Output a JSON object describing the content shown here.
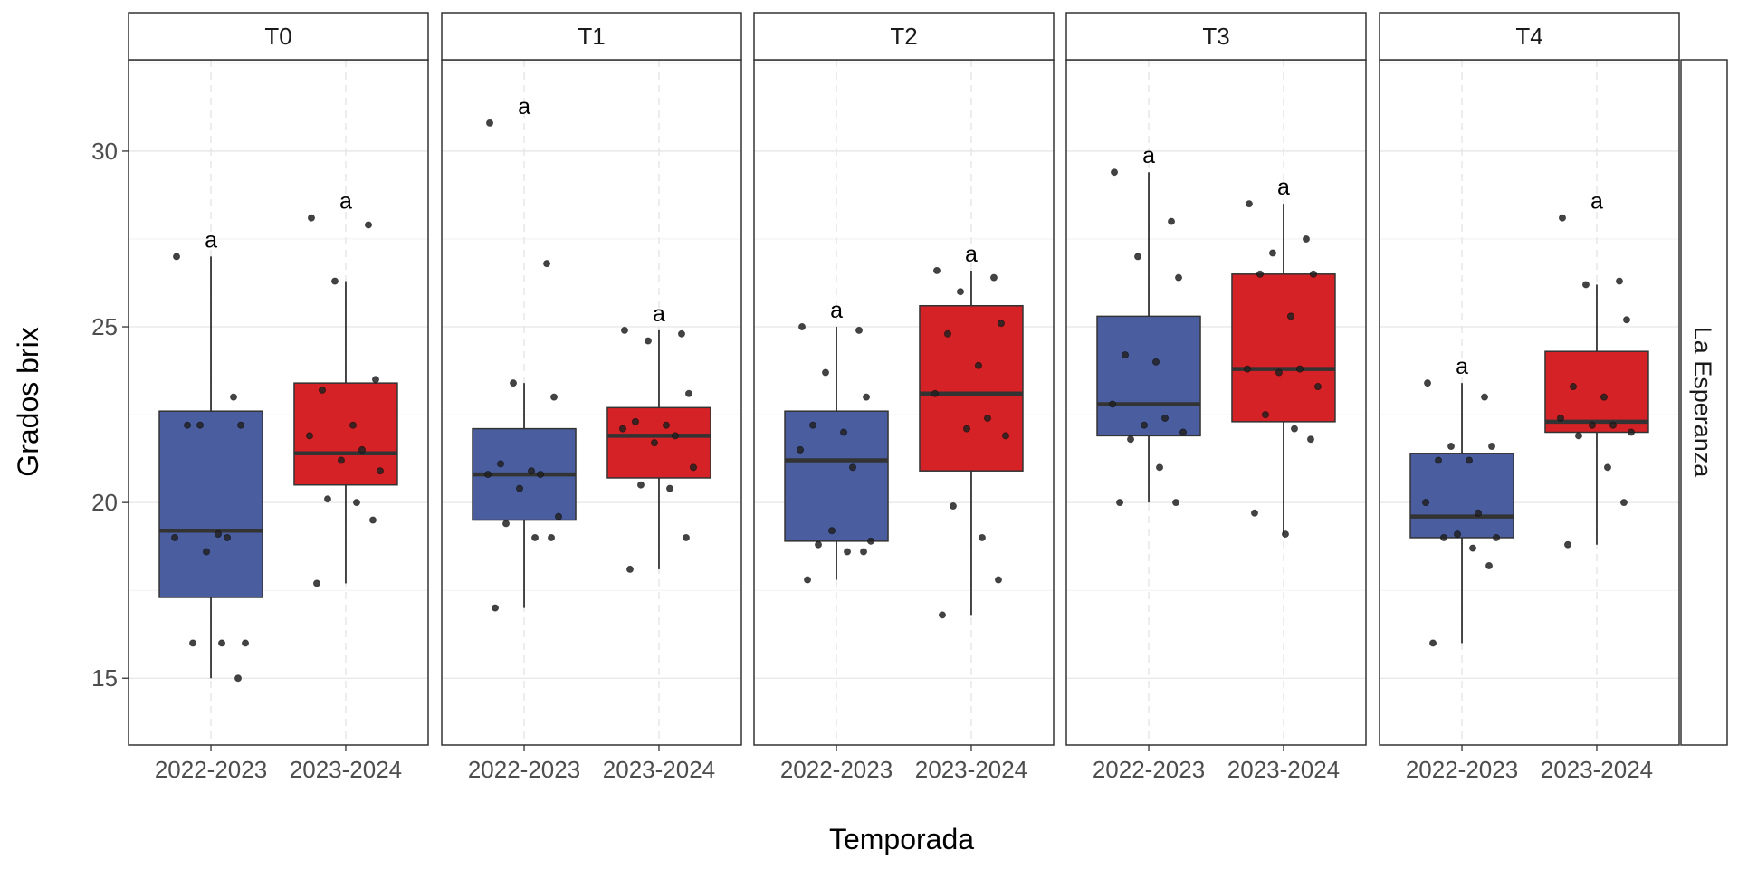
{
  "chart_data": {
    "type": "boxplot",
    "xlabel": "Temporada",
    "ylabel": "Grados brix",
    "ylim": [
      13.1,
      32.6
    ],
    "yticks": [
      15,
      20,
      25,
      30
    ],
    "grid": true,
    "row_strip": "La Esperanza",
    "categories": [
      "2022-2023",
      "2023-2024"
    ],
    "colors": {
      "2022-2023": "#4a5e9f",
      "2023-2024": "#d52226",
      "points": "#222222",
      "median": "#333333"
    },
    "panels": [
      {
        "label": "T0",
        "boxes": [
          {
            "season": "2022-2023",
            "min": 15.0,
            "q1": 17.3,
            "median": 19.2,
            "q3": 22.6,
            "max": 27.0,
            "letter": "a",
            "points": [
              27.0,
              23.0,
              22.2,
              22.2,
              22.2,
              19.1,
              19.0,
              19.0,
              18.6,
              16.0,
              16.0,
              16.0,
              15.0
            ]
          },
          {
            "season": "2023-2024",
            "min": 17.7,
            "q1": 20.5,
            "median": 21.4,
            "q3": 23.4,
            "max": 26.3,
            "letter": "a",
            "points": [
              28.1,
              27.9,
              26.3,
              23.5,
              23.2,
              22.2,
              21.9,
              21.5,
              21.2,
              20.9,
              20.1,
              20.0,
              19.5,
              17.7
            ]
          }
        ]
      },
      {
        "label": "T1",
        "boxes": [
          {
            "season": "2022-2023",
            "min": 17.0,
            "q1": 19.5,
            "median": 20.8,
            "q3": 22.1,
            "max": 23.4,
            "letter": "a",
            "points": [
              30.8,
              26.8,
              23.4,
              23.0,
              21.1,
              20.9,
              20.8,
              20.8,
              20.4,
              19.6,
              19.4,
              19.0,
              19.0,
              17.0
            ]
          },
          {
            "season": "2023-2024",
            "min": 18.1,
            "q1": 20.7,
            "median": 21.9,
            "q3": 22.7,
            "max": 24.9,
            "letter": "a",
            "points": [
              24.9,
              24.8,
              24.6,
              23.1,
              22.3,
              22.2,
              22.1,
              21.9,
              21.7,
              21.0,
              20.5,
              20.4,
              19.0,
              18.1
            ]
          }
        ]
      },
      {
        "label": "T2",
        "boxes": [
          {
            "season": "2022-2023",
            "min": 17.8,
            "q1": 18.9,
            "median": 21.2,
            "q3": 22.6,
            "max": 25.0,
            "letter": "a",
            "points": [
              25.0,
              24.9,
              23.7,
              23.0,
              22.2,
              22.0,
              21.5,
              21.0,
              19.2,
              18.9,
              18.8,
              18.6,
              18.6,
              17.8
            ]
          },
          {
            "season": "2023-2024",
            "min": 16.8,
            "q1": 20.9,
            "median": 23.1,
            "q3": 25.6,
            "max": 26.6,
            "letter": "a",
            "points": [
              26.6,
              26.4,
              26.0,
              25.1,
              24.8,
              23.9,
              23.1,
              22.4,
              22.1,
              21.9,
              19.9,
              19.0,
              17.8,
              16.8
            ]
          }
        ]
      },
      {
        "label": "T3",
        "boxes": [
          {
            "season": "2022-2023",
            "min": 20.0,
            "q1": 21.9,
            "median": 22.8,
            "q3": 25.3,
            "max": 29.4,
            "letter": "a",
            "points": [
              29.4,
              28.0,
              27.0,
              26.4,
              24.2,
              24.0,
              22.8,
              22.4,
              22.2,
              22.0,
              21.8,
              21.0,
              20.0,
              20.0
            ]
          },
          {
            "season": "2023-2024",
            "min": 19.1,
            "q1": 22.3,
            "median": 23.8,
            "q3": 26.5,
            "max": 28.5,
            "letter": "a",
            "points": [
              28.5,
              27.5,
              27.1,
              26.5,
              26.5,
              25.3,
              23.8,
              23.8,
              23.7,
              23.3,
              22.5,
              22.1,
              21.8,
              19.7,
              19.1
            ]
          }
        ]
      },
      {
        "label": "T4",
        "boxes": [
          {
            "season": "2022-2023",
            "min": 16.0,
            "q1": 19.0,
            "median": 19.6,
            "q3": 21.4,
            "max": 23.4,
            "letter": "a",
            "points": [
              23.4,
              23.0,
              21.6,
              21.6,
              21.2,
              21.2,
              20.0,
              19.7,
              19.1,
              19.0,
              19.0,
              18.7,
              18.2,
              16.0
            ]
          },
          {
            "season": "2023-2024",
            "min": 18.8,
            "q1": 22.0,
            "median": 22.3,
            "q3": 24.3,
            "max": 26.2,
            "letter": "a",
            "points": [
              28.1,
              26.3,
              26.2,
              25.2,
              23.3,
              23.0,
              22.4,
              22.2,
              22.2,
              22.0,
              21.9,
              21.0,
              20.0,
              18.8
            ]
          }
        ]
      }
    ]
  }
}
